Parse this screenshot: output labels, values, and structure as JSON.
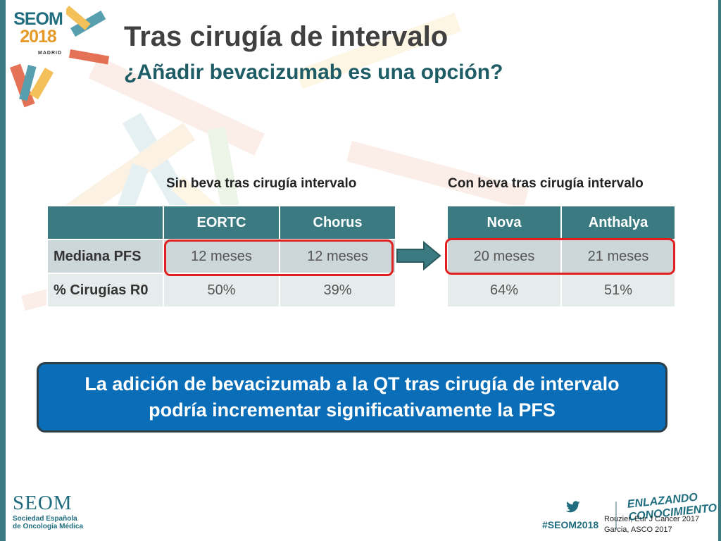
{
  "slide": {
    "title": "Tras cirugía de intervalo",
    "subtitle": "¿Añadir bevacizumab es una opción?"
  },
  "logo": {
    "line1": "SEOM",
    "line2": "2018",
    "line3": "MADRID"
  },
  "colors": {
    "teal": "#3a7a80",
    "highlight": "#e02020",
    "callout": "#0a6db7",
    "accent": "#e59a2a"
  },
  "left_table": {
    "caption": "Sin beva tras cirugía intervalo",
    "headers": [
      "",
      "EORTC",
      "Chorus"
    ],
    "rows": [
      {
        "label": "Mediana PFS",
        "values": [
          "12 meses",
          "12 meses"
        ]
      },
      {
        "label": "% Cirugías R0",
        "values": [
          "50%",
          "39%"
        ]
      }
    ]
  },
  "right_table": {
    "caption": "Con beva tras cirugía intervalo",
    "headers": [
      "Nova",
      "Anthalya"
    ],
    "rows": [
      {
        "values": [
          "20 meses",
          "21 meses"
        ]
      },
      {
        "values": [
          "64%",
          "51%"
        ]
      }
    ]
  },
  "arrow_icon": "right-arrow-icon",
  "callout": {
    "line1": "La adición de bevacizumab a la QT tras cirugía de intervalo",
    "line2": "podría incrementar significativamente la PFS"
  },
  "footer": {
    "org_name": "SEOM",
    "org_sub1": "Sociedad Española",
    "org_sub2": "de Oncología Médica",
    "hashtag": "#SEOM2018",
    "brand_line1": "ENLAZANDO",
    "brand_line2": "CONOCIMIENTO",
    "ref1": "Rouzier, Eur J Cancer 2017",
    "ref2": "Garcia, ASCO 2017"
  }
}
